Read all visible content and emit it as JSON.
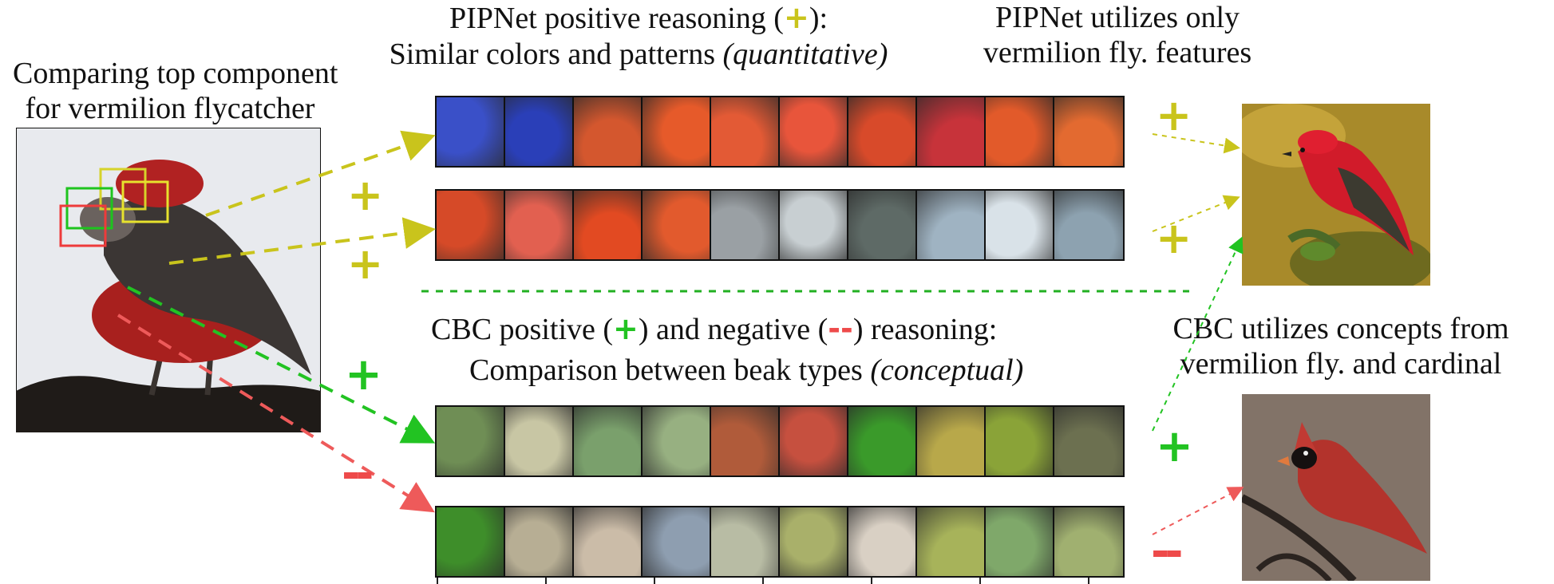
{
  "left_panel": {
    "title_line1": "Comparing top component",
    "title_line2": "for vermilion flycatcher"
  },
  "pipnet": {
    "heading_pre": "PIPNet positive reasoning (",
    "heading_sym": "+",
    "heading_post": "):",
    "subheading": "Similar colors and patterns ",
    "subheading_italic": "(quantitative)",
    "right_line1": "PIPNet utilizes only",
    "right_line2": "vermilion fly. features",
    "color": "#c9c41c"
  },
  "cbc": {
    "heading_a": "CBC positive (",
    "heading_plus": "+",
    "heading_b": ") and negative (",
    "heading_minus": "--",
    "heading_c": ")  reasoning:",
    "subheading": "Comparison between beak types ",
    "subheading_italic": "(conceptual)",
    "right_line1": "CBC utilizes concepts from",
    "right_line2": "vermilion fly. and cardinal",
    "positive_color": "#22c322",
    "negative_color": "#ee4a4a"
  },
  "signs": {
    "plus": "+",
    "minus": "--"
  },
  "strips": {
    "row1": [
      "#3a50c8",
      "#2a3fb8",
      "#d4572e",
      "#e65a2a",
      "#e35a35",
      "#e8553b",
      "#d84a2a",
      "#c7333a",
      "#e25a2a",
      "#e36a30"
    ],
    "row2": [
      "#d64a28",
      "#e26050",
      "#e24a22",
      "#e25a2d",
      "#9aa0a4",
      "#c8cfd2",
      "#5e6a66",
      "#9fb3c2",
      "#d9e2e8",
      "#8da2b0"
    ],
    "row3": [
      "#6f8e55",
      "#c8c6a4",
      "#7aa06c",
      "#97b081",
      "#b05b3a",
      "#c6503f",
      "#3a9a2a",
      "#b8a84a",
      "#8aa338",
      "#6c7050"
    ],
    "row4": [
      "#3e8e2a",
      "#b7ae94",
      "#cbbca8",
      "#8e9eb0",
      "#b8bca4",
      "#a9b06a",
      "#d9d0c4",
      "#a7b35a",
      "#7fa86a",
      "#a0b070"
    ]
  }
}
